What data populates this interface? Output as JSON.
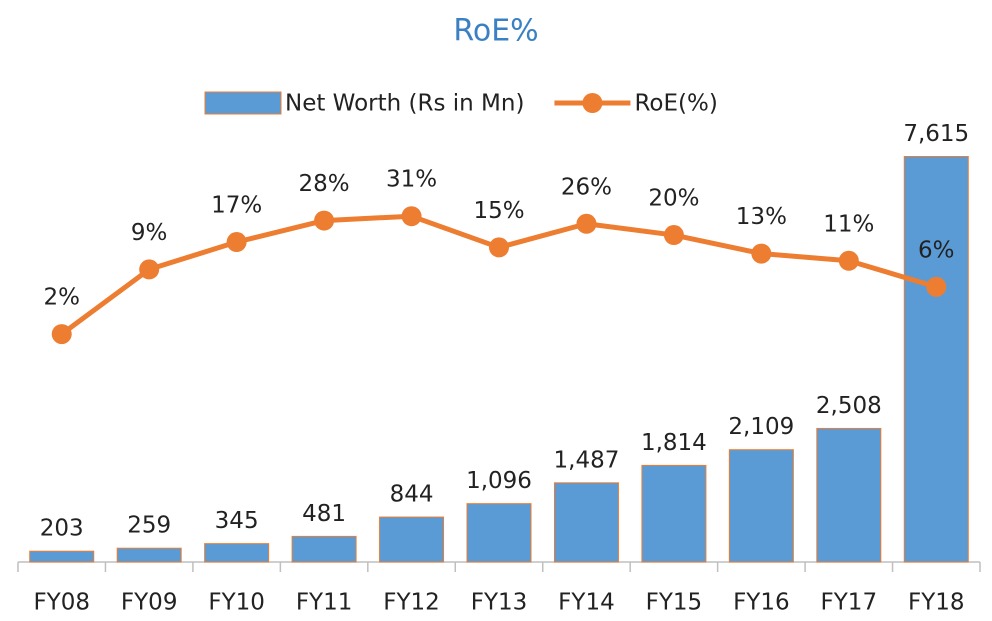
{
  "chart_data": {
    "type": "bar-line",
    "title": "RoE%",
    "categories": [
      "FY08",
      "FY09",
      "FY10",
      "FY11",
      "FY12",
      "FY13",
      "FY14",
      "FY15",
      "FY16",
      "FY17",
      "FY18"
    ],
    "series": [
      {
        "name": "Net Worth (Rs in Mn)",
        "type": "bar",
        "color": "#5b9bd5",
        "values": [
          203,
          259,
          345,
          481,
          844,
          1096,
          1487,
          1814,
          2109,
          2508,
          7615
        ],
        "value_labels": [
          "203",
          "259",
          "345",
          "481",
          "844",
          "1,096",
          "1,487",
          "1,814",
          "2,109",
          "2,508",
          "7,615"
        ]
      },
      {
        "name": "RoE(%)",
        "type": "line",
        "axis": "y2",
        "color": "#ed7d31",
        "values": [
          2,
          9,
          17,
          28,
          31,
          15,
          26,
          20,
          13,
          11,
          6
        ],
        "value_labels": [
          "2%",
          "9%",
          "17%",
          "28%",
          "31%",
          "15%",
          "26%",
          "20%",
          "13%",
          "11%",
          "6%"
        ]
      }
    ],
    "ylim": [
      0,
      8000
    ],
    "y2lim": [
      0.01,
      200
    ],
    "y2log": true,
    "legend": "top"
  }
}
